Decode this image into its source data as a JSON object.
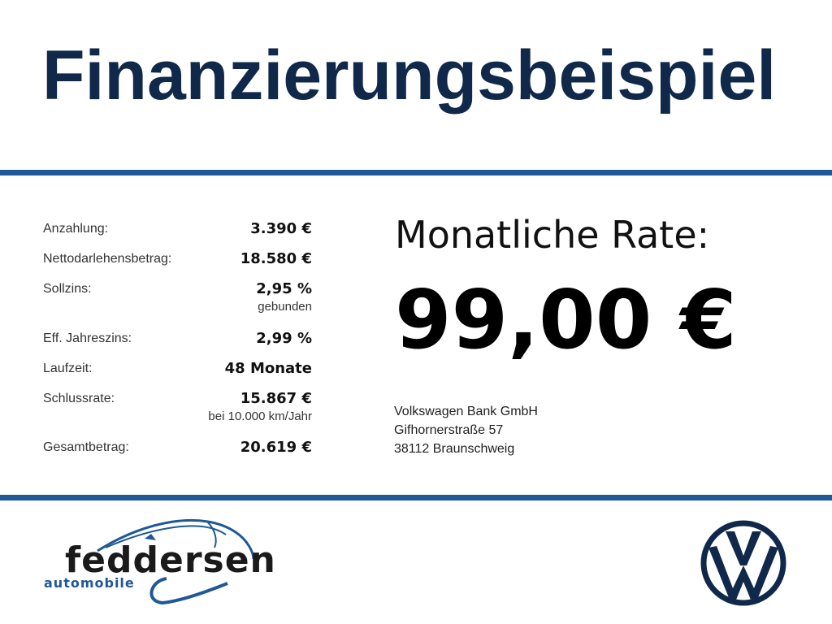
{
  "title": "Finanzierungsbeispiel",
  "details": [
    {
      "label": "Anzahlung:",
      "value": "3.390 €"
    },
    {
      "label": "Nettodarlehensbetrag:",
      "value": "18.580 €"
    },
    {
      "label": "Sollzins:",
      "value": "2,95 %",
      "note": "gebunden"
    },
    {
      "label": "Eff. Jahreszins:",
      "value": "2,99 %"
    },
    {
      "label": "Laufzeit:",
      "value": "48 Monate"
    },
    {
      "label": "Schlussrate:",
      "value": "15.867 €",
      "note": "bei 10.000 km/Jahr"
    },
    {
      "label": "Gesamtbetrag:",
      "value": "20.619 €"
    }
  ],
  "rate": {
    "label": "Monatliche Rate:",
    "value": "99,00 €"
  },
  "lender": {
    "name": "Volkswagen Bank GmbH",
    "street": "Gifhornerstraße 57",
    "city": "38112 Braunschweig"
  },
  "dealer_logo": {
    "name": "feddersen",
    "tagline": "automobile"
  },
  "brand_logo": "vw-logo",
  "colors": {
    "title": "#10294a",
    "accent": "#1f5896"
  }
}
